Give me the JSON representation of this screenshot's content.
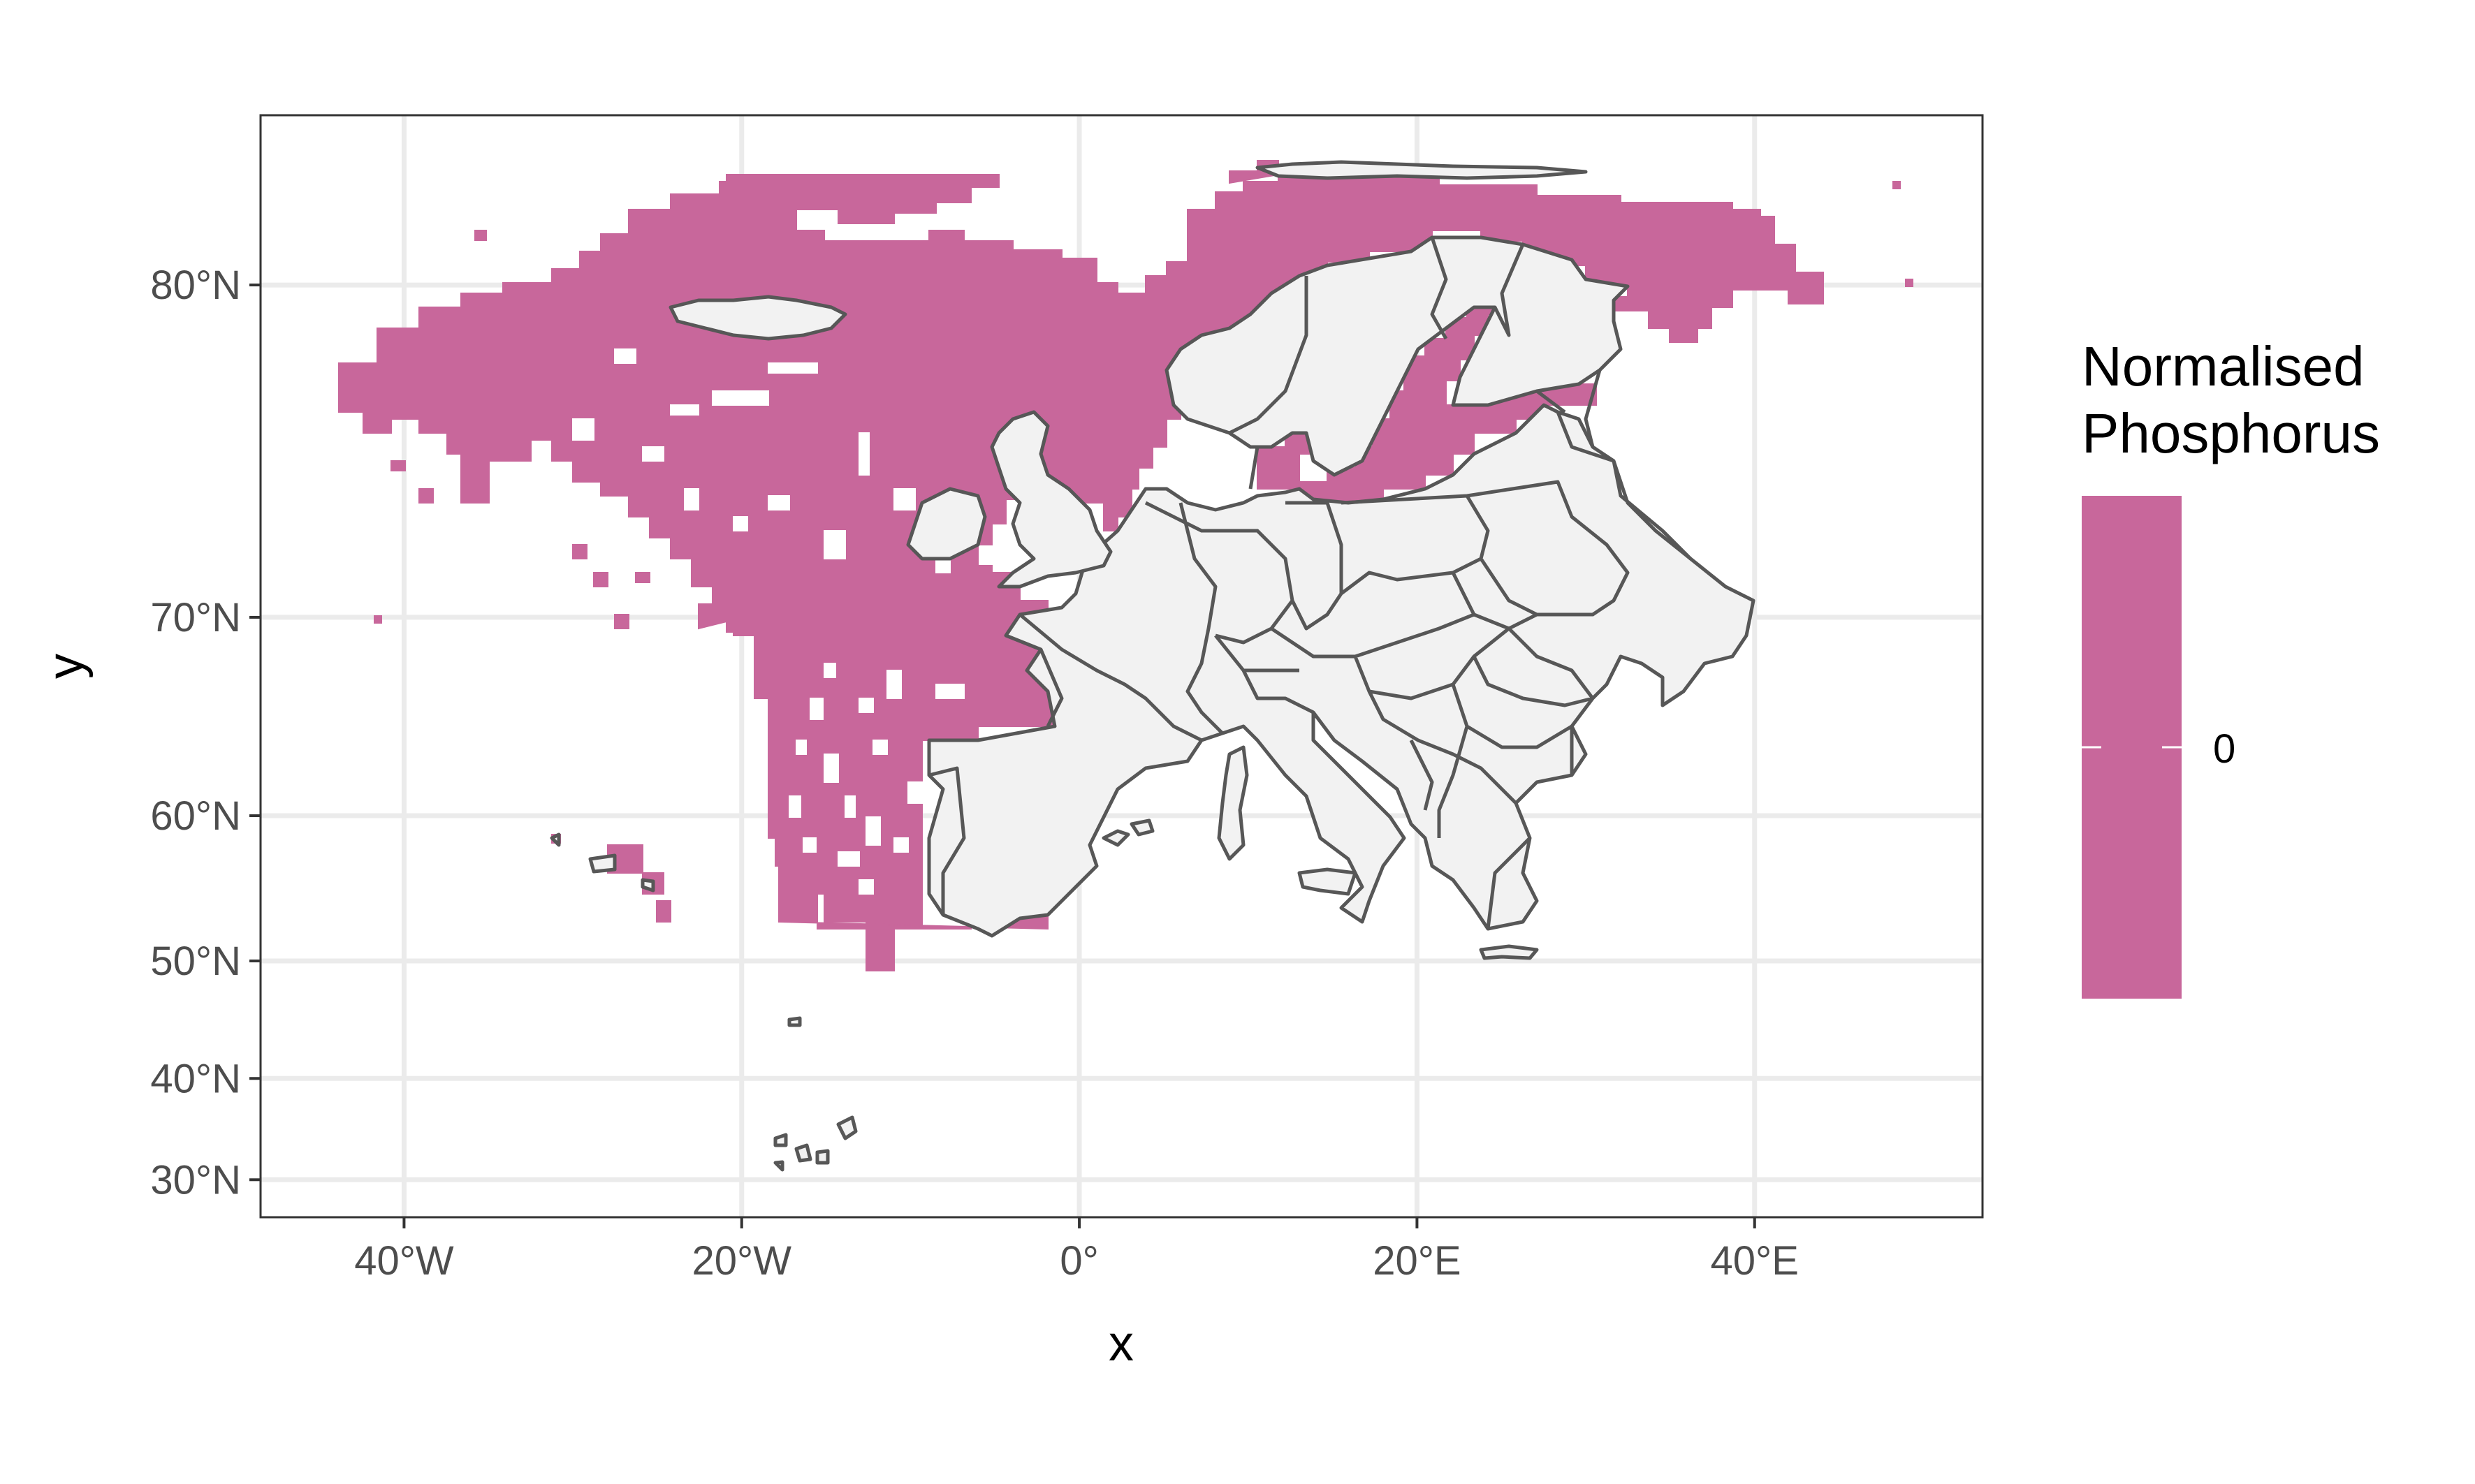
{
  "chart_data": {
    "type": "heatmap",
    "title": "",
    "xlabel": "x",
    "ylabel": "y",
    "x_ticks": [
      {
        "lon": -40,
        "label": "40°W"
      },
      {
        "lon": -20,
        "label": "20°W"
      },
      {
        "lon": 0,
        "label": "0°"
      },
      {
        "lon": 20,
        "label": "20°E"
      },
      {
        "lon": 40,
        "label": "40°E"
      }
    ],
    "y_ticks": [
      {
        "lat": 30,
        "label": "30°N"
      },
      {
        "lat": 40,
        "label": "40°N"
      },
      {
        "lat": 50,
        "label": "50°N"
      },
      {
        "lat": 60,
        "label": "60°N"
      },
      {
        "lat": 70,
        "label": "70°N"
      },
      {
        "lat": 80,
        "label": "80°N"
      }
    ],
    "xlim": [
      -48.5,
      53.5
    ],
    "ylim": [
      26,
      83
    ],
    "projection": "mercator",
    "grid": true,
    "legend": {
      "title_lines": [
        "Normalised",
        "Phosphorus"
      ],
      "placement": "right",
      "value_labels": [
        "0"
      ],
      "values": [
        0
      ]
    },
    "fill_value": 0,
    "fill_color": "#c8679b",
    "land_color": "#f2f2f2",
    "border_color": "#575757"
  }
}
